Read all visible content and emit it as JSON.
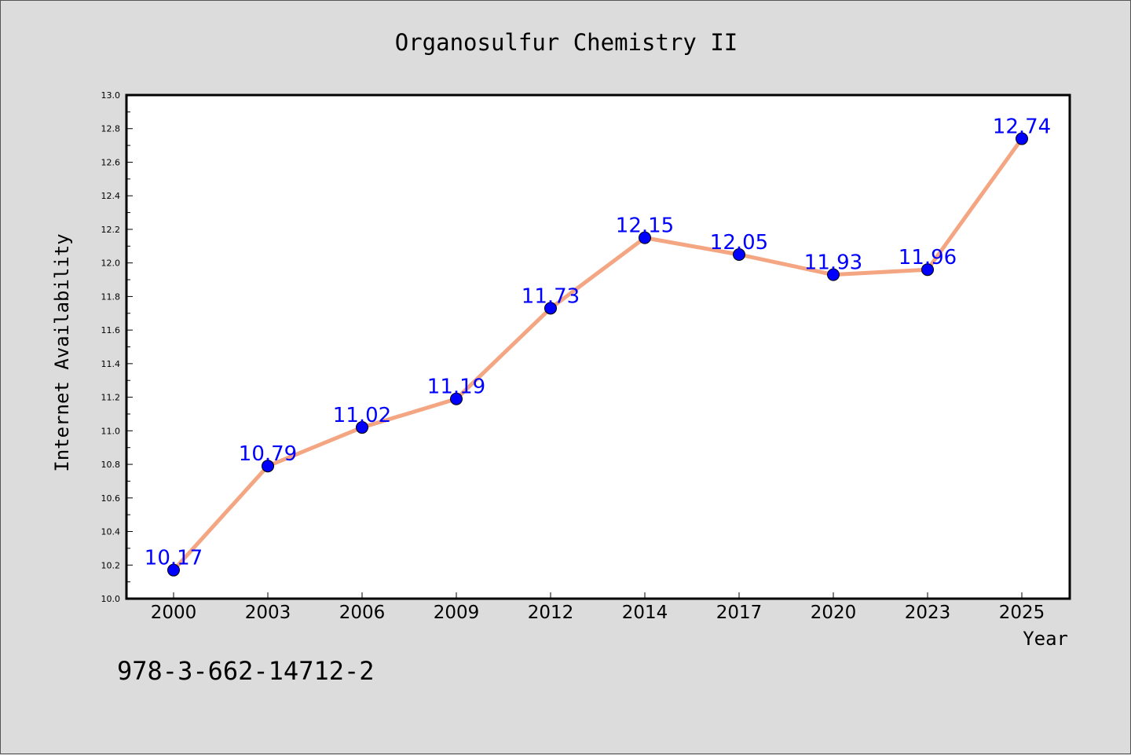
{
  "chart_data": {
    "type": "line",
    "title": "Organosulfur Chemistry II",
    "xlabel": "Year",
    "ylabel": "Internet Availability",
    "categories": [
      "2000",
      "2003",
      "2006",
      "2009",
      "2012",
      "2014",
      "2017",
      "2020",
      "2023",
      "2025"
    ],
    "series": [
      {
        "values": [
          10.17,
          10.79,
          11.02,
          11.19,
          11.73,
          12.15,
          12.05,
          11.93,
          11.96,
          12.74
        ],
        "labels": [
          "10.17",
          "10.79",
          "11.02",
          "11.19",
          "11.73",
          "12.15",
          "12.05",
          "11.93",
          "11.96",
          "12.74"
        ],
        "line_color": "#f4a582",
        "marker_color": "#0000ff"
      }
    ],
    "ylim": [
      10.0,
      13.0
    ],
    "yticks": [
      "10.0",
      "10.2",
      "10.4",
      "10.6",
      "10.8",
      "11.0",
      "11.2",
      "11.4",
      "11.6",
      "11.8",
      "12.0",
      "12.2",
      "12.4",
      "12.6",
      "12.8",
      "13.0"
    ],
    "grid": false,
    "legend": "none"
  },
  "footer": {
    "isbn": "978-3-662-14712-2"
  },
  "colors": {
    "background": "#dcdcdc",
    "plot_background": "#ffffff",
    "data_label": "#0000ff"
  }
}
